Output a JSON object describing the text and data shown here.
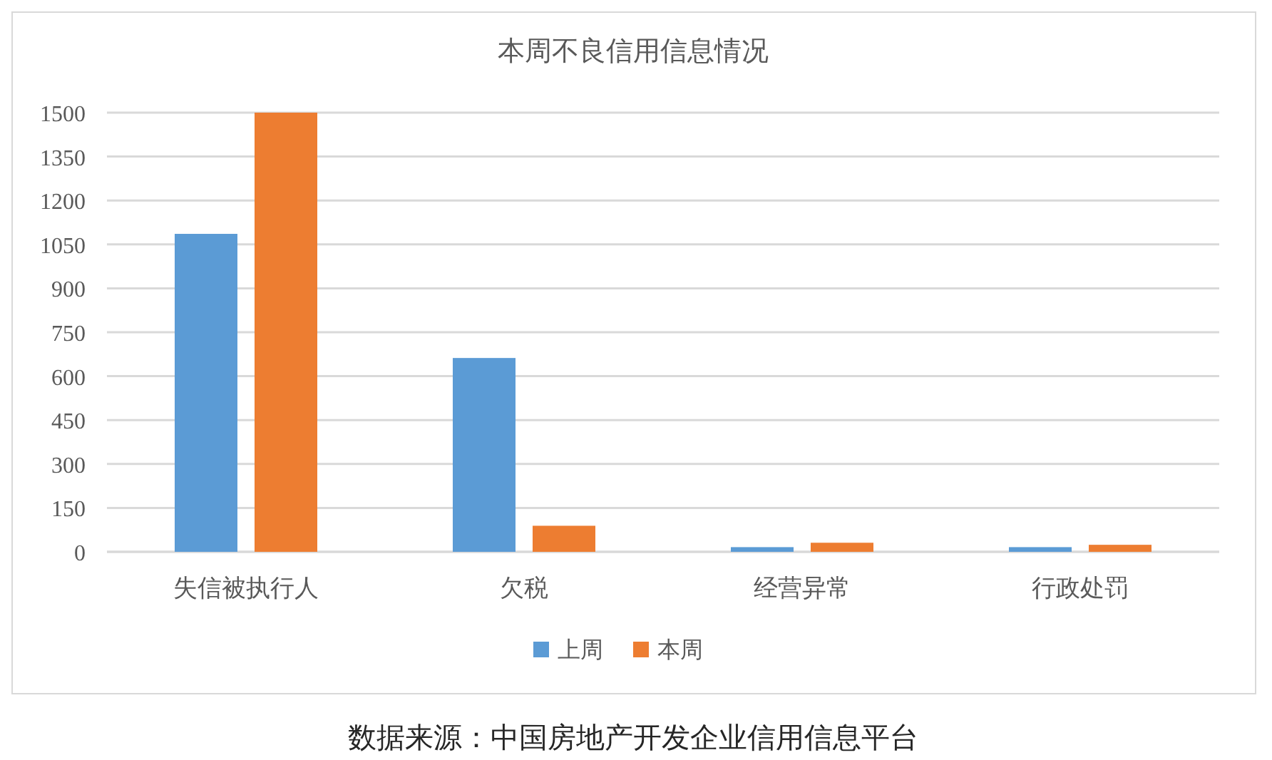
{
  "chart_data": {
    "type": "bar",
    "title": "本周不良信用信息情况",
    "categories": [
      "失信被执行人",
      "欠税",
      "经营异常",
      "行政处罚"
    ],
    "series": [
      {
        "name": "上周",
        "color": "#5b9bd5",
        "values": [
          1086,
          662,
          16,
          16
        ]
      },
      {
        "name": "本周",
        "color": "#ed7d31",
        "values": [
          1500,
          89,
          31,
          24
        ]
      }
    ],
    "ylim": [
      0,
      1500
    ],
    "yticks": [
      0,
      150,
      300,
      450,
      600,
      750,
      900,
      1050,
      1200,
      1350,
      1500
    ],
    "grid": "y",
    "legend": "bottom",
    "annotations": [
      "数据来源：中国房地产开发企业信用信息平台"
    ]
  }
}
